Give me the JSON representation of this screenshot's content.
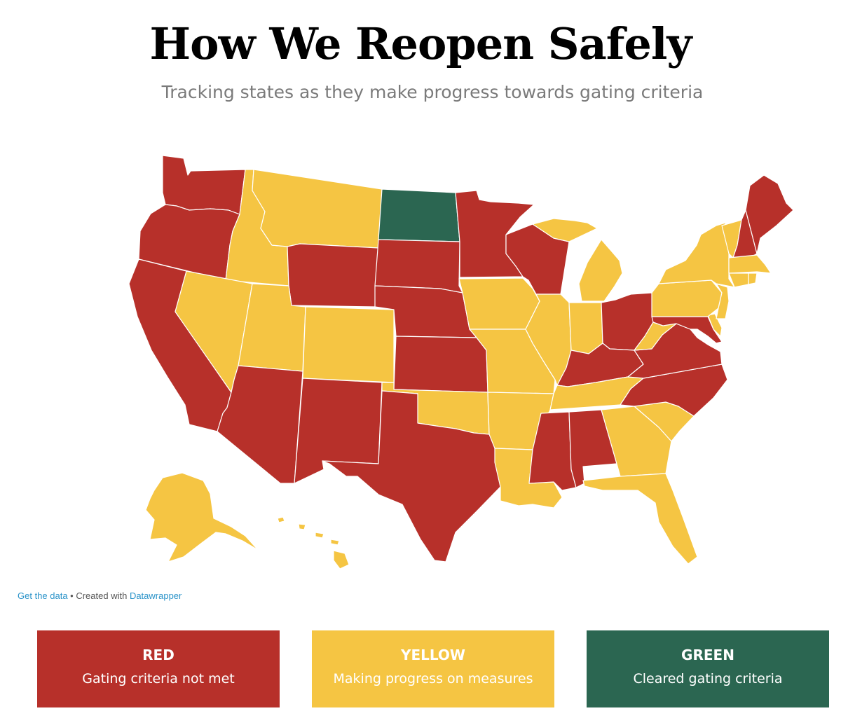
{
  "header": {
    "title": "How We Reopen Safely",
    "subtitle": "Tracking states as they make progress towards gating criteria"
  },
  "colors": {
    "red": "#b7302a",
    "yellow": "#f5c543",
    "green": "#2b6651",
    "border": "#ffffff"
  },
  "states": {
    "WA": "red",
    "OR": "red",
    "CA": "red",
    "ID": "yellow",
    "NV": "yellow",
    "MT": "yellow",
    "WY": "red",
    "UT": "yellow",
    "AZ": "red",
    "CO": "yellow",
    "NM": "red",
    "ND": "green",
    "SD": "red",
    "NE": "red",
    "KS": "red",
    "OK": "yellow",
    "TX": "red",
    "MN": "red",
    "IA": "yellow",
    "MO": "yellow",
    "AR": "yellow",
    "LA": "yellow",
    "WI": "red",
    "IL": "yellow",
    "MI": "yellow",
    "IN": "yellow",
    "OH": "red",
    "KY": "red",
    "TN": "yellow",
    "MS": "red",
    "AL": "red",
    "GA": "yellow",
    "FL": "yellow",
    "SC": "yellow",
    "NC": "red",
    "VA": "red",
    "WV": "yellow",
    "MD": "red",
    "DE": "yellow",
    "NJ": "yellow",
    "PA": "yellow",
    "NY": "yellow",
    "VT": "yellow",
    "NH": "red",
    "ME": "red",
    "MA": "yellow",
    "CT": "yellow",
    "RI": "yellow",
    "AK": "yellow",
    "HI": "yellow"
  },
  "footer": {
    "get_data": "Get the data",
    "separator": " • Created with ",
    "datawrapper": "Datawrapper"
  },
  "legend": [
    {
      "key": "red",
      "name": "RED",
      "description": "Gating criteria not met"
    },
    {
      "key": "yellow",
      "name": "YELLOW",
      "description": "Making progress on measures"
    },
    {
      "key": "green",
      "name": "GREEN",
      "description": "Cleared gating criteria"
    }
  ]
}
